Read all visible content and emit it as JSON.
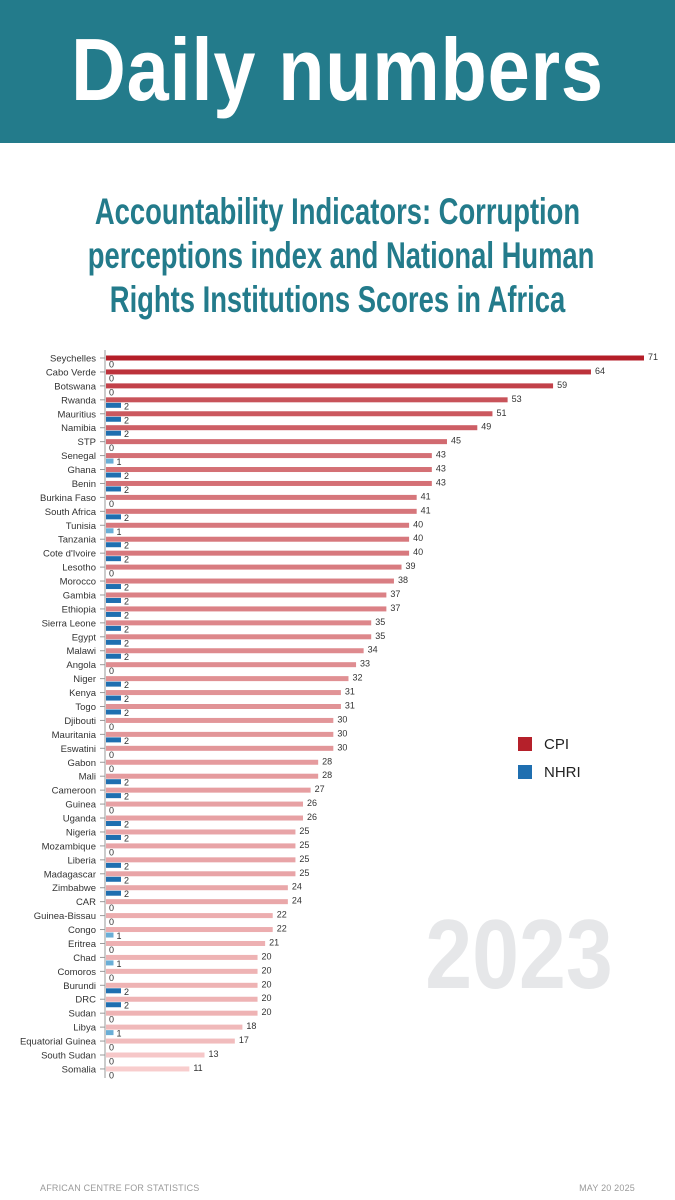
{
  "header": {
    "title": "Daily numbers"
  },
  "subtitle_lines": [
    "Accountability Indicators: Corruption",
    "perceptions index  and National Human",
    "Rights Institutions Scores in Africa"
  ],
  "year_watermark": "2023",
  "footer": {
    "left": "AFRICAN CENTRE FOR STATISTICS",
    "right": "MAY 20 2025"
  },
  "colors": {
    "header": "#237b8b",
    "cpi": "#b5202a",
    "nhri": "#1f6fb0",
    "nhri_light": "#6aaed6"
  },
  "chart_data": {
    "type": "bar",
    "orientation": "horizontal",
    "title": "Accountability Indicators: Corruption perceptions index  and National Human Rights Institutions Scores in Africa",
    "legend": {
      "position": "right",
      "entries": [
        "CPI",
        "NHRI"
      ]
    },
    "categories": [
      "Seychelles",
      "Cabo Verde",
      "Botswana",
      "Rwanda",
      "Mauritius",
      "Namibia",
      "STP",
      "Senegal",
      "Ghana",
      "Benin",
      "Burkina Faso",
      "South Africa",
      "Tunisia",
      "Tanzania",
      "Cote d'Ivoire",
      "Lesotho",
      "Morocco",
      "Gambia",
      "Ethiopia",
      "Sierra Leone",
      "Egypt",
      "Malawi",
      "Angola",
      "Niger",
      "Kenya",
      "Togo",
      "Djibouti",
      "Mauritania",
      "Eswatini",
      "Gabon",
      "Mali",
      "Cameroon",
      "Guinea",
      "Uganda",
      "Nigeria",
      "Mozambique",
      "Liberia",
      "Madagascar",
      "Zimbabwe",
      "CAR",
      "Guinea-Bissau",
      "Congo",
      "Eritrea",
      "Chad",
      "Comoros",
      "Burundi",
      "DRC",
      "Sudan",
      "Libya",
      "Equatorial Guinea",
      "South Sudan",
      "Somalia"
    ],
    "series": [
      {
        "name": "CPI",
        "values": [
          71,
          64,
          59,
          53,
          51,
          49,
          45,
          43,
          43,
          43,
          41,
          41,
          40,
          40,
          40,
          39,
          38,
          37,
          37,
          35,
          35,
          34,
          33,
          32,
          31,
          31,
          30,
          30,
          30,
          28,
          28,
          27,
          26,
          26,
          25,
          25,
          25,
          25,
          24,
          24,
          22,
          22,
          21,
          20,
          20,
          20,
          20,
          20,
          18,
          17,
          13,
          11
        ]
      },
      {
        "name": "NHRI",
        "values": [
          0,
          0,
          0,
          2,
          2,
          2,
          0,
          1,
          2,
          2,
          0,
          2,
          1,
          2,
          2,
          0,
          2,
          2,
          2,
          2,
          2,
          2,
          0,
          2,
          2,
          2,
          0,
          2,
          0,
          0,
          2,
          2,
          0,
          2,
          2,
          0,
          2,
          2,
          2,
          0,
          0,
          1,
          0,
          1,
          0,
          2,
          2,
          0,
          1,
          0,
          0,
          0
        ]
      }
    ],
    "xlim": [
      0,
      71
    ],
    "grid": false
  }
}
